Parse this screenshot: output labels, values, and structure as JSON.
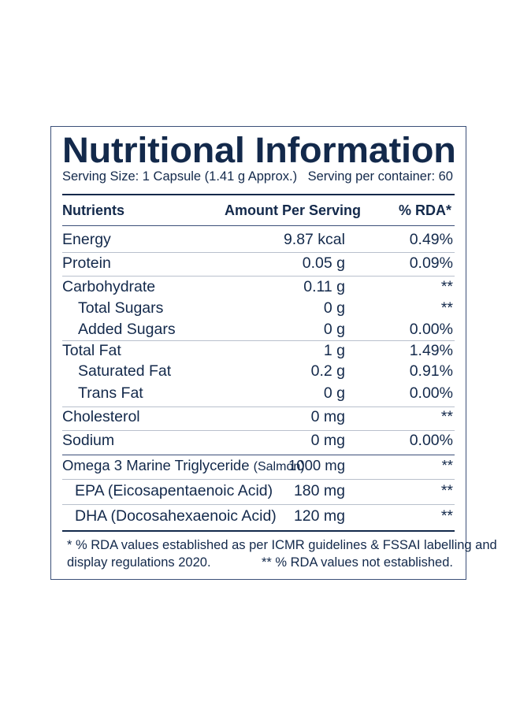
{
  "title": "Nutritional Information",
  "serving_size": "Serving Size: 1 Capsule (1.41 g Approx.)",
  "servings_per_container": "Serving per container: 60",
  "headers": {
    "nutrients": "Nutrients",
    "amount": "Amount Per Serving",
    "rda": "% RDA*"
  },
  "rows": [
    {
      "name": "Energy",
      "amount": "9.87 kcal",
      "rda": "0.49%"
    },
    {
      "name": "Protein",
      "amount": "0.05 g",
      "rda": "0.09%"
    },
    {
      "name": "Carbohydrate",
      "amount": "0.11 g",
      "rda": "**"
    },
    {
      "name": "Total Sugars",
      "amount": "0 g",
      "rda": "**"
    },
    {
      "name": "Added Sugars",
      "amount": "0 g",
      "rda": "0.00%"
    },
    {
      "name": "Total Fat",
      "amount": "1 g",
      "rda": "1.49%"
    },
    {
      "name": "Saturated Fat",
      "amount": "0.2 g",
      "rda": "0.91%"
    },
    {
      "name": "Trans Fat",
      "amount": "0 g",
      "rda": "0.00%"
    },
    {
      "name": "Cholesterol",
      "amount": "0 mg",
      "rda": "**"
    },
    {
      "name": "Sodium",
      "amount": "0 mg",
      "rda": "0.00%"
    },
    {
      "name": "Omega 3 Marine Triglyceride",
      "name_suffix": "(Salmon)",
      "amount": "1000 mg",
      "rda": "**"
    },
    {
      "name": "EPA (Eicosapentaenoic Acid)",
      "amount": "180 mg",
      "rda": "**"
    },
    {
      "name": "DHA (Docosahexaenoic Acid)",
      "amount": "120 mg",
      "rda": "**"
    }
  ],
  "footnote": {
    "line1": "* % RDA values established as per ICMR guidelines & FSSAI labelling and",
    "line2a": "display regulations 2020.",
    "line2b": "** % RDA values not established."
  },
  "colors": {
    "text": "#13294b",
    "border": "#3b4f78",
    "divider": "#b9c0cc"
  }
}
